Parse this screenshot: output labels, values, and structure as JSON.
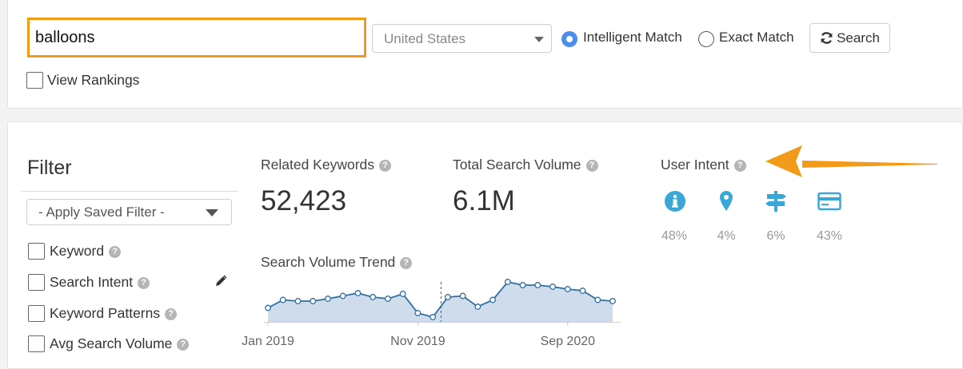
{
  "search": {
    "keyword": "balloons",
    "country": "United States",
    "match_options": [
      {
        "label": "Intelligent Match",
        "selected": true
      },
      {
        "label": "Exact Match",
        "selected": false
      }
    ],
    "search_label": "Search",
    "view_rankings_label": "View Rankings"
  },
  "filter": {
    "title": "Filter",
    "saved_filter_placeholder": "- Apply Saved Filter -",
    "items": [
      {
        "label": "Keyword"
      },
      {
        "label": "Search Intent"
      },
      {
        "label": "Keyword Patterns"
      },
      {
        "label": "Avg Search Volume"
      }
    ]
  },
  "metrics": {
    "related_keywords_label": "Related Keywords",
    "related_keywords_value": "52,423",
    "total_volume_label": "Total Search Volume",
    "total_volume_value": "6.1M",
    "trend_label": "Search Volume Trend"
  },
  "user_intent": {
    "label": "User Intent",
    "items": [
      {
        "icon": "info-icon",
        "pct": "48%"
      },
      {
        "icon": "location-pin-icon",
        "pct": "4%"
      },
      {
        "icon": "signpost-icon",
        "pct": "6%"
      },
      {
        "icon": "credit-card-icon",
        "pct": "43%"
      }
    ]
  },
  "colors": {
    "accent_orange": "#f29a1a",
    "intent_blue": "#3aa8d6",
    "radio_blue": "#4b8de8",
    "trend_line": "#2f6f9e",
    "trend_fill": "#cfdcec"
  },
  "chart_data": {
    "type": "area",
    "title": "Search Volume Trend",
    "x_tick_labels": [
      "Jan 2019",
      "Nov 2019",
      "Sep 2020"
    ],
    "x_tick_indices": [
      0,
      10,
      20
    ],
    "values": [
      0.35,
      0.55,
      0.52,
      0.52,
      0.58,
      0.65,
      0.72,
      0.62,
      0.58,
      0.7,
      0.22,
      0.12,
      0.62,
      0.65,
      0.38,
      0.55,
      1.0,
      0.92,
      0.92,
      0.88,
      0.82,
      0.78,
      0.55,
      0.52
    ],
    "marker_index": 11,
    "ylim": [
      0,
      1
    ],
    "grid": false
  }
}
